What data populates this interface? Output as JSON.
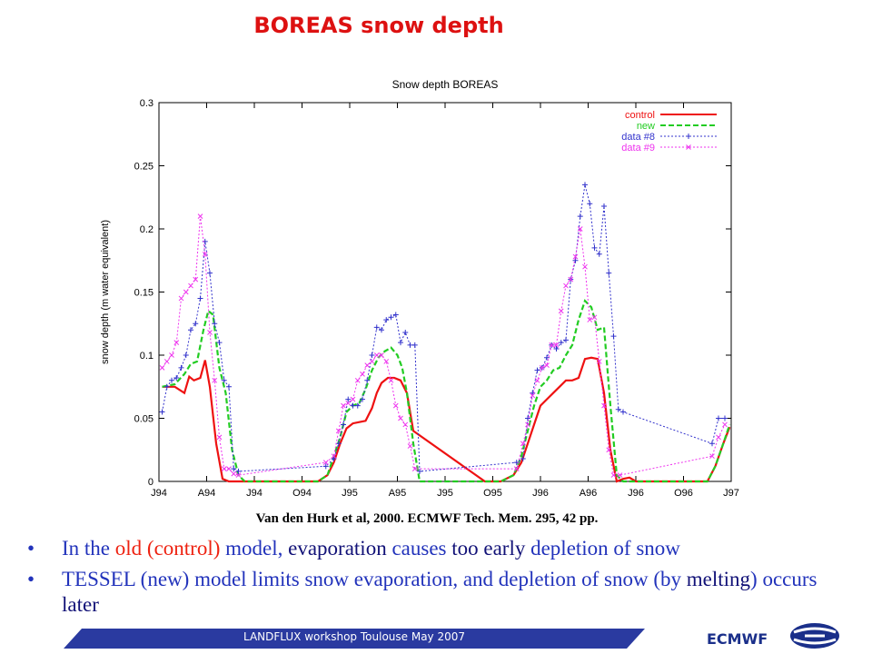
{
  "slide": {
    "title": "BOREAS snow depth",
    "citation": "Van den Hurk et al, 2000. ECMWF Tech. Mem. 295, 42 pp.",
    "bullets": [
      {
        "segments": [
          {
            "text": "In the ",
            "style": "blue"
          },
          {
            "text": "old (control)",
            "style": "red"
          },
          {
            "text": " model, ",
            "style": "blue"
          },
          {
            "text": "evaporation",
            "style": "dark"
          },
          {
            "text": " causes ",
            "style": "blue"
          },
          {
            "text": "too early",
            "style": "dark"
          },
          {
            "text": " depletion of snow",
            "style": "blue"
          }
        ]
      },
      {
        "segments": [
          {
            "text": "TESSEL (new) model limits snow evaporation, and depletion of snow (by ",
            "style": "blue"
          },
          {
            "text": "melting",
            "style": "dark"
          },
          {
            "text": ") occurs ",
            "style": "blue"
          },
          {
            "text": "later",
            "style": "dark"
          }
        ]
      }
    ],
    "footer": "LANDFLUX workshop Toulouse May 2007",
    "org": "ECMWF",
    "logo_icon": "ecmwf-logo-icon"
  },
  "chart_data": {
    "type": "line",
    "title": "Snow depth BOREAS",
    "xlabel": "",
    "ylabel": "snow depth (m water equivalent)",
    "xlim": [
      0,
      36
    ],
    "ylim": [
      0,
      0.3
    ],
    "x_ticks": [
      {
        "x": 0,
        "label": "J94"
      },
      {
        "x": 3,
        "label": "A94"
      },
      {
        "x": 6,
        "label": "J94"
      },
      {
        "x": 9,
        "label": "O94"
      },
      {
        "x": 12,
        "label": "J95"
      },
      {
        "x": 15,
        "label": "A95"
      },
      {
        "x": 18,
        "label": "J95"
      },
      {
        "x": 21,
        "label": "O95"
      },
      {
        "x": 24,
        "label": "J96"
      },
      {
        "x": 27,
        "label": "A96"
      },
      {
        "x": 30,
        "label": "J96"
      },
      {
        "x": 33,
        "label": "O96"
      },
      {
        "x": 36,
        "label": "J97"
      }
    ],
    "y_ticks": [
      {
        "y": 0,
        "label": "0"
      },
      {
        "y": 0.05,
        "label": "0.05"
      },
      {
        "y": 0.1,
        "label": "0.1"
      },
      {
        "y": 0.15,
        "label": "0.15"
      },
      {
        "y": 0.2,
        "label": "0.2"
      },
      {
        "y": 0.25,
        "label": "0.25"
      },
      {
        "y": 0.3,
        "label": "0.3"
      }
    ],
    "legend_position": "top-right",
    "series": [
      {
        "name": "control",
        "color": "#ee1111",
        "style": "solid",
        "x": [
          0.2,
          1.0,
          1.6,
          1.9,
          2.2,
          2.6,
          2.9,
          3.2,
          3.6,
          4.0,
          4.4,
          5.0,
          5.5,
          9.0,
          10.0,
          10.6,
          11.0,
          11.4,
          11.8,
          12.2,
          12.6,
          13.0,
          13.4,
          13.7,
          14.0,
          14.4,
          14.8,
          15.2,
          15.6,
          16.0,
          20.5,
          21.5,
          22.3,
          22.8,
          23.2,
          23.6,
          24.0,
          24.4,
          24.8,
          25.2,
          25.6,
          26.0,
          26.4,
          26.8,
          27.2,
          27.6,
          28.0,
          28.4,
          28.8,
          29.2,
          29.6,
          30.0,
          34.5,
          35.0,
          35.5,
          35.9
        ],
        "y": [
          0.075,
          0.075,
          0.07,
          0.083,
          0.08,
          0.082,
          0.096,
          0.075,
          0.03,
          0.002,
          0.0,
          0.0,
          0.0,
          0.0,
          0.0,
          0.005,
          0.015,
          0.03,
          0.042,
          0.046,
          0.047,
          0.048,
          0.058,
          0.07,
          0.078,
          0.082,
          0.082,
          0.08,
          0.07,
          0.04,
          0.0,
          0.0,
          0.005,
          0.015,
          0.03,
          0.045,
          0.06,
          0.065,
          0.07,
          0.075,
          0.08,
          0.08,
          0.082,
          0.097,
          0.098,
          0.097,
          0.07,
          0.025,
          0.0,
          0.002,
          0.003,
          0.0,
          0.0,
          0.012,
          0.03,
          0.043
        ]
      },
      {
        "name": "new",
        "color": "#22cc22",
        "style": "dashed",
        "x": [
          0.2,
          1.0,
          1.6,
          2.0,
          2.4,
          2.8,
          3.1,
          3.4,
          3.8,
          4.2,
          4.6,
          5.0,
          5.4,
          9.0,
          10.0,
          10.6,
          11.0,
          11.4,
          11.8,
          12.2,
          12.6,
          13.0,
          13.4,
          13.8,
          14.2,
          14.6,
          15.0,
          15.3,
          15.6,
          16.0,
          16.4,
          20.5,
          21.5,
          22.3,
          22.8,
          23.2,
          23.6,
          24.0,
          24.4,
          24.8,
          25.2,
          25.6,
          26.0,
          26.4,
          26.8,
          27.2,
          27.6,
          28.0,
          28.4,
          28.8,
          29.2,
          29.6,
          30.0,
          34.5,
          35.0,
          35.5,
          35.9
        ],
        "y": [
          0.075,
          0.077,
          0.085,
          0.093,
          0.095,
          0.12,
          0.135,
          0.132,
          0.09,
          0.07,
          0.025,
          0.005,
          0.0,
          0.0,
          0.0,
          0.005,
          0.02,
          0.035,
          0.055,
          0.06,
          0.062,
          0.073,
          0.088,
          0.098,
          0.103,
          0.106,
          0.1,
          0.09,
          0.07,
          0.03,
          0.0,
          0.0,
          0.0,
          0.005,
          0.02,
          0.04,
          0.06,
          0.075,
          0.08,
          0.088,
          0.09,
          0.1,
          0.108,
          0.128,
          0.143,
          0.138,
          0.12,
          0.122,
          0.06,
          0.005,
          0.0,
          0.0,
          0.0,
          0.0,
          0.012,
          0.03,
          0.045
        ]
      },
      {
        "name": "data #8",
        "color": "#3333cc",
        "style": "dotted",
        "marker": "plus",
        "x": [
          0.2,
          0.5,
          0.8,
          1.1,
          1.4,
          1.7,
          2.0,
          2.3,
          2.6,
          2.9,
          3.2,
          3.5,
          3.8,
          4.1,
          4.4,
          4.7,
          5.0,
          10.5,
          11.0,
          11.3,
          11.6,
          11.9,
          12.2,
          12.5,
          12.8,
          13.1,
          13.4,
          13.7,
          14.0,
          14.3,
          14.6,
          14.9,
          15.2,
          15.5,
          15.8,
          16.1,
          16.4,
          22.5,
          22.9,
          23.2,
          23.5,
          23.8,
          24.1,
          24.4,
          24.7,
          25.0,
          25.3,
          25.6,
          25.9,
          26.2,
          26.5,
          26.8,
          27.1,
          27.4,
          27.7,
          28.0,
          28.3,
          28.6,
          28.9,
          29.2,
          34.8,
          35.2,
          35.6
        ],
        "y": [
          0.055,
          0.075,
          0.08,
          0.082,
          0.09,
          0.1,
          0.12,
          0.125,
          0.145,
          0.19,
          0.165,
          0.125,
          0.11,
          0.08,
          0.075,
          0.01,
          0.008,
          0.012,
          0.018,
          0.03,
          0.045,
          0.065,
          0.06,
          0.06,
          0.065,
          0.08,
          0.1,
          0.122,
          0.12,
          0.128,
          0.13,
          0.132,
          0.11,
          0.118,
          0.108,
          0.108,
          0.008,
          0.015,
          0.018,
          0.05,
          0.07,
          0.088,
          0.09,
          0.098,
          0.108,
          0.105,
          0.11,
          0.112,
          0.16,
          0.175,
          0.21,
          0.235,
          0.22,
          0.185,
          0.18,
          0.218,
          0.165,
          0.115,
          0.057,
          0.055,
          0.03,
          0.05,
          0.05
        ]
      },
      {
        "name": "data #9",
        "color": "#ee33ee",
        "style": "dotted",
        "marker": "x",
        "x": [
          0.2,
          0.5,
          0.8,
          1.1,
          1.4,
          1.7,
          2.0,
          2.3,
          2.6,
          2.9,
          3.2,
          3.5,
          3.8,
          4.1,
          4.4,
          4.7,
          5.0,
          10.5,
          11.0,
          11.3,
          11.6,
          11.9,
          12.2,
          12.5,
          12.8,
          13.1,
          13.4,
          13.7,
          14.0,
          14.3,
          14.6,
          14.9,
          15.2,
          15.5,
          15.8,
          16.1,
          22.5,
          22.9,
          23.2,
          23.5,
          23.8,
          24.1,
          24.4,
          24.7,
          25.0,
          25.3,
          25.6,
          25.9,
          26.2,
          26.5,
          26.8,
          27.1,
          27.4,
          27.7,
          28.0,
          28.3,
          28.6,
          29.0,
          34.8,
          35.2,
          35.6
        ],
        "y": [
          0.09,
          0.095,
          0.1,
          0.11,
          0.145,
          0.15,
          0.155,
          0.16,
          0.21,
          0.18,
          0.118,
          0.08,
          0.035,
          0.01,
          0.01,
          0.006,
          0.005,
          0.015,
          0.02,
          0.04,
          0.06,
          0.062,
          0.065,
          0.08,
          0.085,
          0.092,
          0.095,
          0.1,
          0.1,
          0.095,
          0.08,
          0.06,
          0.05,
          0.045,
          0.028,
          0.01,
          0.01,
          0.03,
          0.045,
          0.068,
          0.08,
          0.09,
          0.092,
          0.108,
          0.108,
          0.135,
          0.155,
          0.16,
          0.178,
          0.2,
          0.17,
          0.128,
          0.13,
          0.095,
          0.06,
          0.025,
          0.005,
          0.005,
          0.02,
          0.035,
          0.045
        ]
      }
    ]
  }
}
